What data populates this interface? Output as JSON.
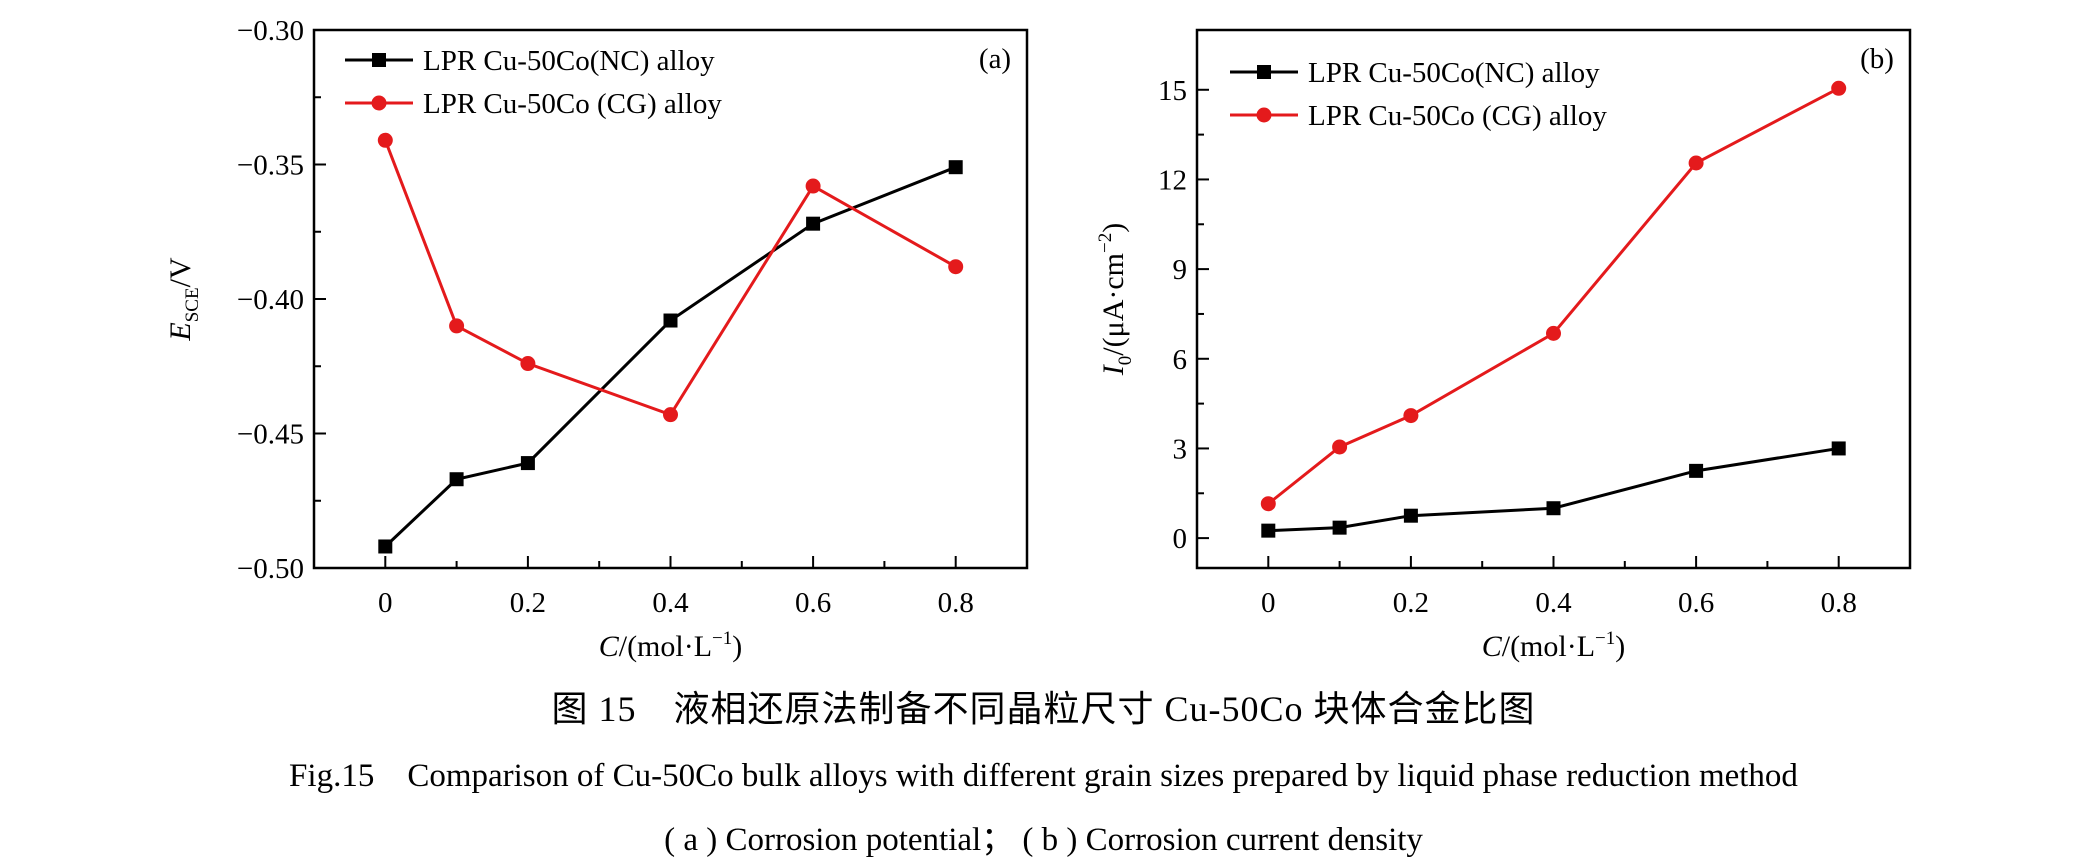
{
  "chart_data": [
    {
      "type": "line",
      "panel_label": "(a)",
      "x": [
        0,
        0.1,
        0.2,
        0.4,
        0.6,
        0.8
      ],
      "xticks": [
        "0",
        "0.2",
        "0.4",
        "0.6",
        "0.8"
      ],
      "xtick_values": [
        0,
        0.2,
        0.4,
        0.6,
        0.8
      ],
      "xlim": [
        -0.1,
        0.9
      ],
      "ylim": [
        -0.5,
        -0.3
      ],
      "yticks": [
        "−0.50",
        "−0.45",
        "−0.40",
        "−0.35",
        "−0.30"
      ],
      "ytick_values": [
        -0.5,
        -0.45,
        -0.4,
        -0.35,
        -0.3
      ],
      "xlabel": {
        "main": "C",
        "rest": "/(mol·L",
        "sup": "−1",
        "close": ")"
      },
      "ylabel": {
        "main": "E",
        "sub": "SCE",
        "rest": "/V"
      },
      "legend_position": "top-left",
      "series": [
        {
          "name": "LPR Cu-50Co(NC) alloy",
          "color": "#000000",
          "marker": "square",
          "values": [
            -0.492,
            -0.467,
            -0.461,
            -0.408,
            -0.372,
            -0.351
          ]
        },
        {
          "name": "LPR Cu-50Co (CG) alloy",
          "color": "#e41a1c",
          "marker": "circle",
          "values": [
            -0.341,
            -0.41,
            -0.424,
            -0.443,
            -0.358,
            -0.388
          ]
        }
      ]
    },
    {
      "type": "line",
      "panel_label": "(b)",
      "x": [
        0,
        0.1,
        0.2,
        0.4,
        0.6,
        0.8
      ],
      "xticks": [
        "0",
        "0.2",
        "0.4",
        "0.6",
        "0.8"
      ],
      "xtick_values": [
        0,
        0.2,
        0.4,
        0.6,
        0.8
      ],
      "xlim": [
        -0.1,
        0.9
      ],
      "ylim": [
        -1,
        17
      ],
      "yticks": [
        "0",
        "3",
        "6",
        "9",
        "12",
        "15"
      ],
      "ytick_values": [
        0,
        3,
        6,
        9,
        12,
        15
      ],
      "xlabel": {
        "main": "C",
        "rest": "/(mol·L",
        "sup": "−1",
        "close": ")"
      },
      "ylabel": {
        "main": "I",
        "sub": "0",
        "rest": "/(μA·cm",
        "sup": "−2",
        "close": ")"
      },
      "legend_position": "top-left",
      "series": [
        {
          "name": "LPR Cu-50Co(NC) alloy",
          "color": "#000000",
          "marker": "square",
          "values": [
            0.25,
            0.35,
            0.75,
            1.0,
            2.25,
            3.0
          ]
        },
        {
          "name": "LPR Cu-50Co (CG) alloy",
          "color": "#e41a1c",
          "marker": "circle",
          "values": [
            1.15,
            3.05,
            4.1,
            6.85,
            12.55,
            15.05
          ]
        }
      ]
    }
  ],
  "caption": {
    "cn": "图 15　液相还原法制备不同晶粒尺寸 Cu-50Co 块体合金比图",
    "en": "Fig.15　Comparison of Cu-50Co bulk alloys with different grain sizes prepared by liquid phase reduction method",
    "sub": "( a ) Corrosion potential； ( b ) Corrosion current density"
  }
}
